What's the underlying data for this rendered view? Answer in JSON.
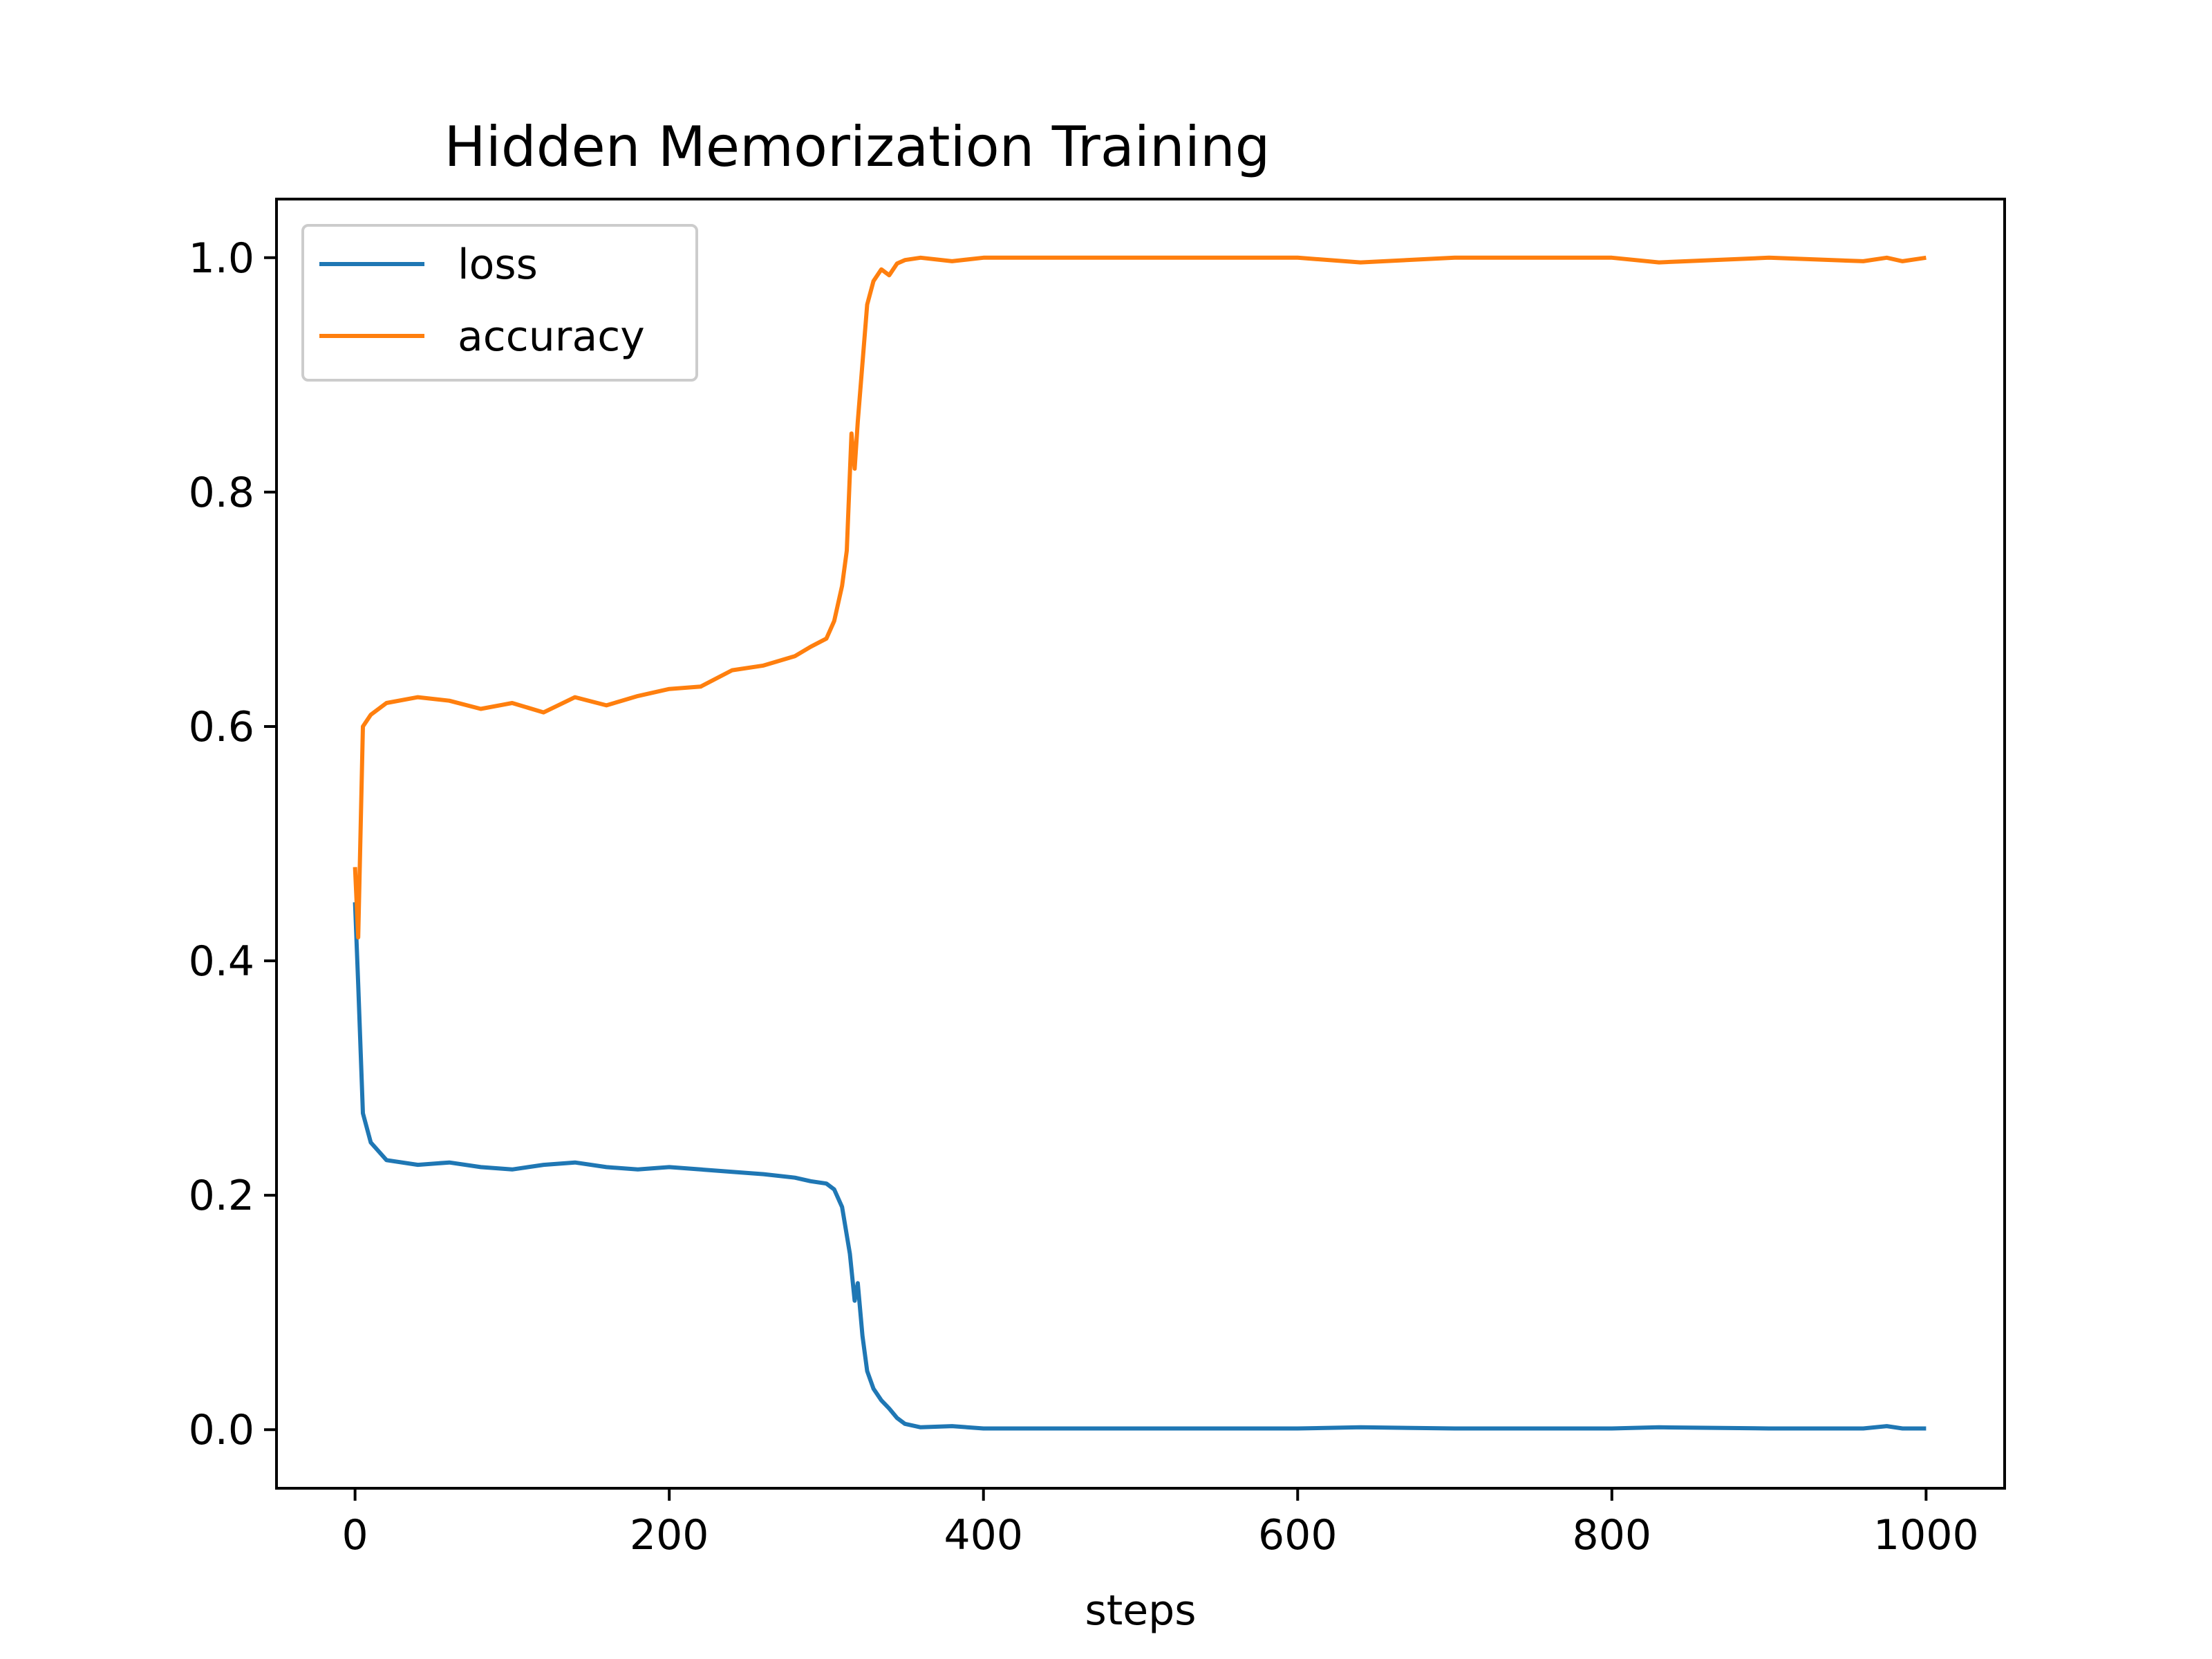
{
  "chart_data": {
    "type": "line",
    "title": "Hidden Memorization Training",
    "xlabel": "steps",
    "ylabel": "",
    "xlim": [
      -50,
      1050
    ],
    "ylim": [
      -0.05,
      1.05
    ],
    "xticks": [
      0,
      200,
      400,
      600,
      800,
      1000
    ],
    "yticks": [
      0.0,
      0.2,
      0.4,
      0.6,
      0.8,
      1.0
    ],
    "xtick_labels": [
      "0",
      "200",
      "400",
      "600",
      "800",
      "1000"
    ],
    "ytick_labels": [
      "0.0",
      "0.2",
      "0.4",
      "0.6",
      "0.8",
      "1.0"
    ],
    "grid": false,
    "legend_position": "top-left",
    "series": [
      {
        "name": "loss",
        "color": "#1f77b4",
        "x": [
          0,
          2,
          5,
          10,
          20,
          40,
          60,
          80,
          100,
          120,
          140,
          160,
          180,
          200,
          220,
          240,
          260,
          280,
          290,
          300,
          305,
          310,
          315,
          318,
          320,
          323,
          326,
          330,
          335,
          340,
          345,
          350,
          360,
          380,
          400,
          450,
          500,
          600,
          640,
          700,
          800,
          830,
          900,
          960,
          975,
          985,
          1000
        ],
        "y": [
          0.45,
          0.38,
          0.27,
          0.245,
          0.23,
          0.226,
          0.228,
          0.224,
          0.222,
          0.226,
          0.228,
          0.224,
          0.222,
          0.224,
          0.222,
          0.22,
          0.218,
          0.215,
          0.212,
          0.21,
          0.205,
          0.19,
          0.15,
          0.11,
          0.125,
          0.08,
          0.05,
          0.035,
          0.025,
          0.018,
          0.01,
          0.005,
          0.002,
          0.003,
          0.001,
          0.001,
          0.001,
          0.001,
          0.002,
          0.001,
          0.001,
          0.002,
          0.001,
          0.001,
          0.003,
          0.001,
          0.001
        ]
      },
      {
        "name": "accuracy",
        "color": "#ff7f0e",
        "x": [
          0,
          2,
          5,
          10,
          20,
          40,
          60,
          80,
          100,
          120,
          140,
          160,
          180,
          200,
          220,
          240,
          260,
          280,
          290,
          300,
          305,
          310,
          313,
          316,
          318,
          320,
          323,
          326,
          330,
          335,
          340,
          345,
          350,
          360,
          380,
          400,
          450,
          500,
          600,
          640,
          700,
          800,
          830,
          900,
          960,
          975,
          985,
          1000
        ],
        "y": [
          0.48,
          0.42,
          0.6,
          0.61,
          0.62,
          0.625,
          0.622,
          0.615,
          0.62,
          0.612,
          0.625,
          0.618,
          0.626,
          0.632,
          0.634,
          0.648,
          0.652,
          0.66,
          0.668,
          0.675,
          0.69,
          0.72,
          0.75,
          0.85,
          0.82,
          0.86,
          0.91,
          0.96,
          0.98,
          0.99,
          0.985,
          0.995,
          0.998,
          1.0,
          0.997,
          1.0,
          1.0,
          1.0,
          1.0,
          0.996,
          1.0,
          1.0,
          0.996,
          1.0,
          0.997,
          1.0,
          0.997,
          1.0
        ]
      }
    ]
  }
}
